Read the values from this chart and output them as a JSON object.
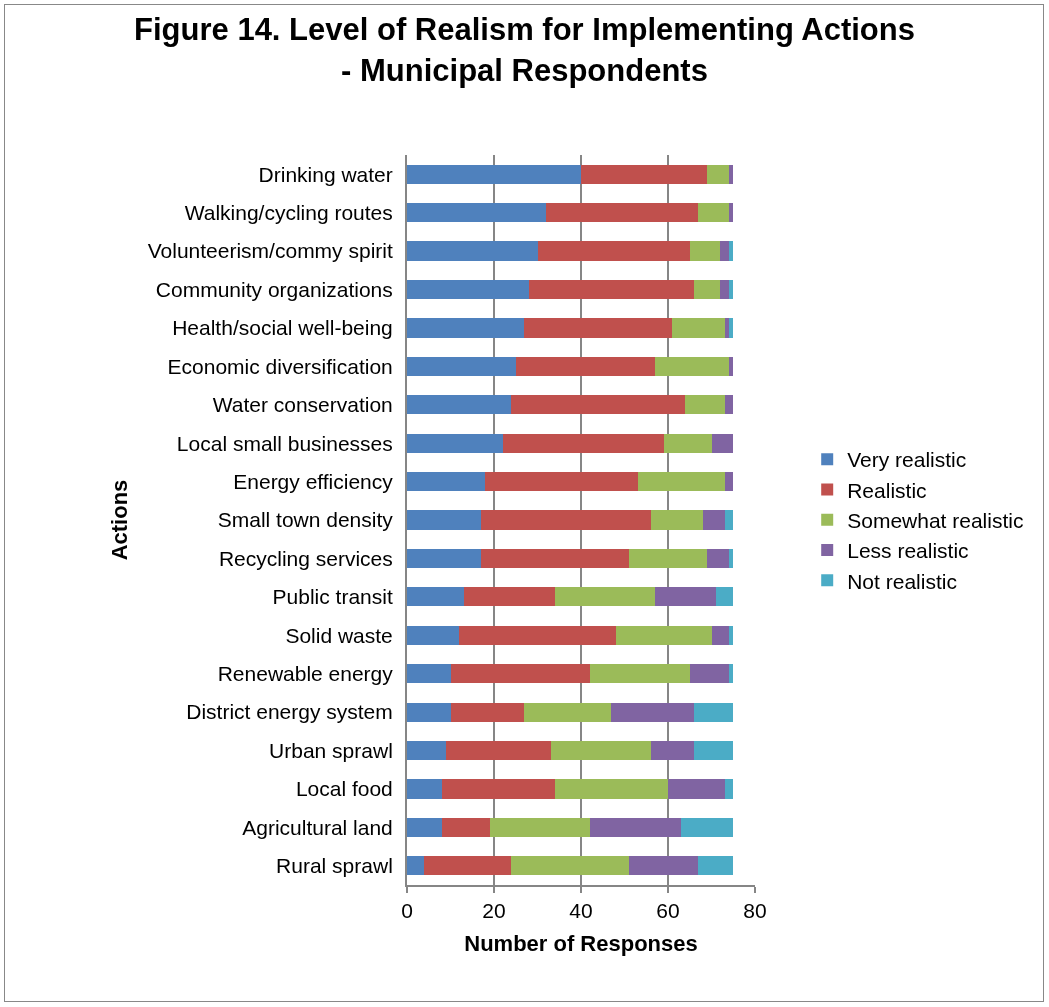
{
  "chart_data": {
    "type": "bar",
    "orientation": "horizontal",
    "stacked": true,
    "title": "Figure 14. Level of Realism for Implementing Actions\n- Municipal Respondents",
    "xlabel": "Number of Responses",
    "ylabel": "Actions",
    "categories": [
      "Drinking water",
      "Walking/cycling routes",
      "Volunteerism/commy spirit",
      "Community organizations",
      "Health/social well-being",
      "Economic diversification",
      "Water conservation",
      "Local small businesses",
      "Energy efficiency",
      "Small town density",
      "Recycling services",
      "Public transit",
      "Solid waste",
      "Renewable energy",
      "District energy system",
      "Urban sprawl",
      "Local food",
      "Agricultural land",
      "Rural sprawl"
    ],
    "series": [
      {
        "name": "Very realistic",
        "color": "#4f81bd",
        "values": [
          40,
          32,
          30,
          28,
          27,
          25,
          24,
          22,
          18,
          17,
          17,
          13,
          12,
          10,
          10,
          9,
          8,
          8,
          4
        ]
      },
      {
        "name": "Realistic",
        "color": "#c0504d",
        "values": [
          29,
          35,
          35,
          38,
          34,
          32,
          40,
          37,
          35,
          39,
          34,
          21,
          36,
          32,
          17,
          24,
          26,
          11,
          20
        ]
      },
      {
        "name": "Somewhat realistic",
        "color": "#9bbb59",
        "values": [
          5,
          7,
          7,
          6,
          12,
          17,
          9,
          11,
          20,
          12,
          18,
          23,
          22,
          23,
          20,
          23,
          26,
          23,
          27
        ]
      },
      {
        "name": "Less realistic",
        "color": "#8064a2",
        "values": [
          1,
          1,
          2,
          2,
          1,
          1,
          2,
          5,
          2,
          5,
          5,
          14,
          4,
          9,
          19,
          10,
          13,
          21,
          16
        ]
      },
      {
        "name": "Not realistic",
        "color": "#4bacc6",
        "values": [
          0,
          0,
          1,
          1,
          1,
          0,
          0,
          0,
          0,
          2,
          1,
          4,
          1,
          1,
          9,
          9,
          2,
          12,
          8
        ]
      }
    ],
    "xlim": [
      0,
      80
    ],
    "xticks": [
      0,
      20,
      40,
      60,
      80
    ],
    "grid": "x",
    "legend": "right"
  }
}
